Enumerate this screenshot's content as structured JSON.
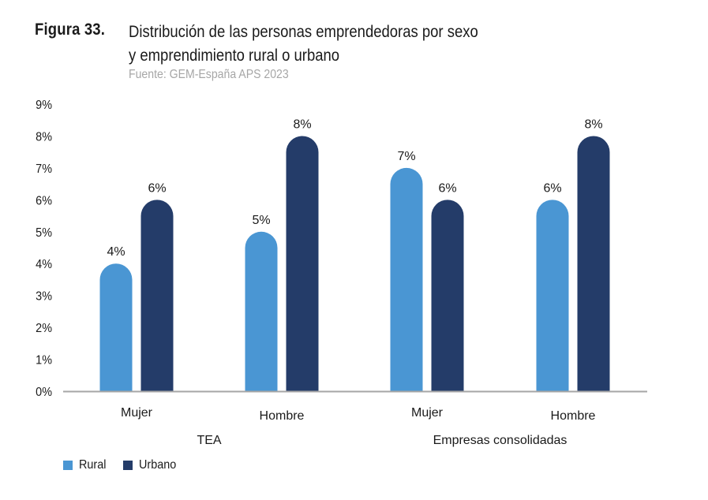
{
  "figure": {
    "label": "Figura 33.",
    "title_line1": "Distribución de las personas emprendedoras por sexo",
    "title_line2": "y emprendimiento rural o urbano",
    "source": "Fuente: GEM-España APS 2023"
  },
  "colors": {
    "rural": "#4a96d3",
    "urbano": "#243c69",
    "axis": "#a6a6a6"
  },
  "chart_data": {
    "type": "bar",
    "title": "Distribución de las personas emprendedoras por sexo y emprendimiento rural o urbano",
    "xlabel": "",
    "ylabel": "",
    "ylim": [
      0,
      9
    ],
    "yticks": [
      0,
      1,
      2,
      3,
      4,
      5,
      6,
      7,
      8,
      9
    ],
    "ytick_labels": [
      "0%",
      "1%",
      "2%",
      "3%",
      "4%",
      "5%",
      "6%",
      "7%",
      "8%",
      "9%"
    ],
    "grid": false,
    "legend_position": "bottom-left",
    "categories": [
      "Mujer",
      "Hombre",
      "Mujer",
      "Hombre"
    ],
    "category_groups": [
      {
        "label": "TEA",
        "categories": [
          0,
          1
        ]
      },
      {
        "label": "Empresas consolidadas",
        "categories": [
          2,
          3
        ]
      }
    ],
    "series": [
      {
        "name": "Rural",
        "values": [
          4,
          5,
          7,
          6
        ],
        "labels": [
          "4%",
          "5%",
          "7%",
          "6%"
        ]
      },
      {
        "name": "Urbano",
        "values": [
          6,
          8,
          6,
          8
        ],
        "labels": [
          "6%",
          "8%",
          "6%",
          "8%"
        ]
      }
    ]
  },
  "legend": {
    "items": [
      {
        "label": "Rural"
      },
      {
        "label": "Urbano"
      }
    ]
  }
}
